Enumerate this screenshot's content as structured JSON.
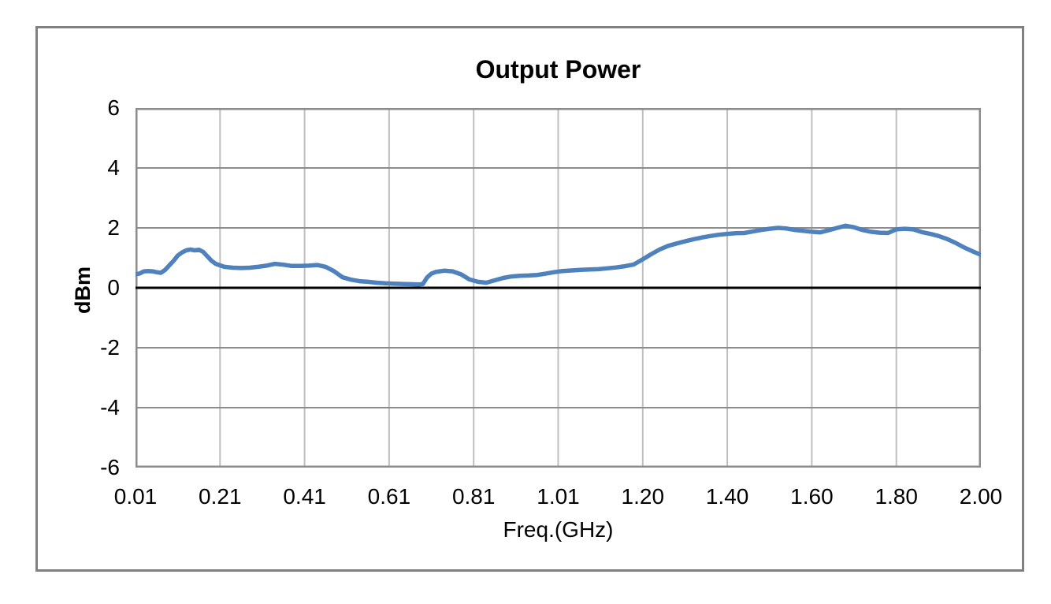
{
  "chart": {
    "title": "Output Power",
    "y_axis_title": "dBm",
    "x_axis_title": "Freq.(GHz)"
  },
  "colors": {
    "line": "#4F81BD",
    "v_gridline": "#BFBFBF",
    "h_gridline": "#8C8C8C",
    "plot_border": "#8C8C8C",
    "zero_line": "#000000",
    "frame_border": "#808080",
    "background": "#FFFFFF",
    "text": "#000000"
  },
  "chart_data": {
    "type": "line",
    "title": "Output Power",
    "xlabel": "Freq.(GHz)",
    "ylabel": "dBm",
    "ylim": [
      -6,
      6
    ],
    "y_ticks": [
      6,
      4,
      2,
      0,
      -2,
      -4,
      -6
    ],
    "x_ticks": [
      0.01,
      0.21,
      0.41,
      0.61,
      0.81,
      1.01,
      1.2,
      1.4,
      1.6,
      1.8,
      2.0
    ],
    "x_tick_labels": [
      "0.01",
      "0.21",
      "0.41",
      "0.61",
      "0.81",
      "1.01",
      "1.20",
      "1.40",
      "1.60",
      "1.80",
      "2.00"
    ],
    "grid": true,
    "legend": false,
    "series": [
      {
        "name": "Output Power",
        "color": "#4F81BD",
        "points": [
          [
            0.01,
            0.45
          ],
          [
            0.02,
            0.48
          ],
          [
            0.03,
            0.55
          ],
          [
            0.04,
            0.56
          ],
          [
            0.05,
            0.55
          ],
          [
            0.06,
            0.52
          ],
          [
            0.07,
            0.5
          ],
          [
            0.08,
            0.6
          ],
          [
            0.09,
            0.75
          ],
          [
            0.1,
            0.9
          ],
          [
            0.11,
            1.08
          ],
          [
            0.12,
            1.18
          ],
          [
            0.13,
            1.25
          ],
          [
            0.14,
            1.28
          ],
          [
            0.15,
            1.25
          ],
          [
            0.16,
            1.27
          ],
          [
            0.17,
            1.2
          ],
          [
            0.18,
            1.05
          ],
          [
            0.19,
            0.9
          ],
          [
            0.2,
            0.8
          ],
          [
            0.21,
            0.75
          ],
          [
            0.22,
            0.7
          ],
          [
            0.24,
            0.67
          ],
          [
            0.26,
            0.66
          ],
          [
            0.28,
            0.67
          ],
          [
            0.3,
            0.7
          ],
          [
            0.32,
            0.74
          ],
          [
            0.34,
            0.8
          ],
          [
            0.36,
            0.77
          ],
          [
            0.38,
            0.73
          ],
          [
            0.4,
            0.73
          ],
          [
            0.42,
            0.74
          ],
          [
            0.44,
            0.76
          ],
          [
            0.46,
            0.7
          ],
          [
            0.48,
            0.55
          ],
          [
            0.5,
            0.35
          ],
          [
            0.52,
            0.27
          ],
          [
            0.54,
            0.22
          ],
          [
            0.56,
            0.2
          ],
          [
            0.58,
            0.17
          ],
          [
            0.6,
            0.15
          ],
          [
            0.62,
            0.14
          ],
          [
            0.64,
            0.13
          ],
          [
            0.66,
            0.12
          ],
          [
            0.68,
            0.11
          ],
          [
            0.69,
            0.13
          ],
          [
            0.7,
            0.35
          ],
          [
            0.71,
            0.47
          ],
          [
            0.72,
            0.53
          ],
          [
            0.74,
            0.57
          ],
          [
            0.76,
            0.55
          ],
          [
            0.78,
            0.45
          ],
          [
            0.8,
            0.28
          ],
          [
            0.82,
            0.2
          ],
          [
            0.84,
            0.17
          ],
          [
            0.86,
            0.25
          ],
          [
            0.88,
            0.33
          ],
          [
            0.9,
            0.38
          ],
          [
            0.92,
            0.4
          ],
          [
            0.94,
            0.41
          ],
          [
            0.96,
            0.43
          ],
          [
            0.98,
            0.47
          ],
          [
            1.0,
            0.52
          ],
          [
            1.02,
            0.56
          ],
          [
            1.04,
            0.58
          ],
          [
            1.06,
            0.6
          ],
          [
            1.08,
            0.61
          ],
          [
            1.1,
            0.62
          ],
          [
            1.12,
            0.65
          ],
          [
            1.14,
            0.68
          ],
          [
            1.16,
            0.72
          ],
          [
            1.18,
            0.78
          ],
          [
            1.2,
            0.95
          ],
          [
            1.22,
            1.12
          ],
          [
            1.24,
            1.28
          ],
          [
            1.26,
            1.4
          ],
          [
            1.28,
            1.48
          ],
          [
            1.3,
            1.55
          ],
          [
            1.32,
            1.62
          ],
          [
            1.34,
            1.68
          ],
          [
            1.36,
            1.73
          ],
          [
            1.38,
            1.77
          ],
          [
            1.4,
            1.8
          ],
          [
            1.42,
            1.82
          ],
          [
            1.44,
            1.83
          ],
          [
            1.46,
            1.88
          ],
          [
            1.48,
            1.93
          ],
          [
            1.5,
            1.97
          ],
          [
            1.52,
            2.0
          ],
          [
            1.54,
            1.98
          ],
          [
            1.56,
            1.93
          ],
          [
            1.58,
            1.9
          ],
          [
            1.6,
            1.87
          ],
          [
            1.62,
            1.85
          ],
          [
            1.64,
            1.92
          ],
          [
            1.66,
            2.0
          ],
          [
            1.68,
            2.07
          ],
          [
            1.7,
            2.02
          ],
          [
            1.72,
            1.93
          ],
          [
            1.74,
            1.87
          ],
          [
            1.76,
            1.84
          ],
          [
            1.78,
            1.83
          ],
          [
            1.8,
            1.95
          ],
          [
            1.82,
            1.97
          ],
          [
            1.84,
            1.95
          ],
          [
            1.86,
            1.86
          ],
          [
            1.88,
            1.8
          ],
          [
            1.9,
            1.73
          ],
          [
            1.92,
            1.63
          ],
          [
            1.94,
            1.5
          ],
          [
            1.96,
            1.35
          ],
          [
            1.98,
            1.22
          ],
          [
            2.0,
            1.1
          ]
        ]
      }
    ]
  }
}
